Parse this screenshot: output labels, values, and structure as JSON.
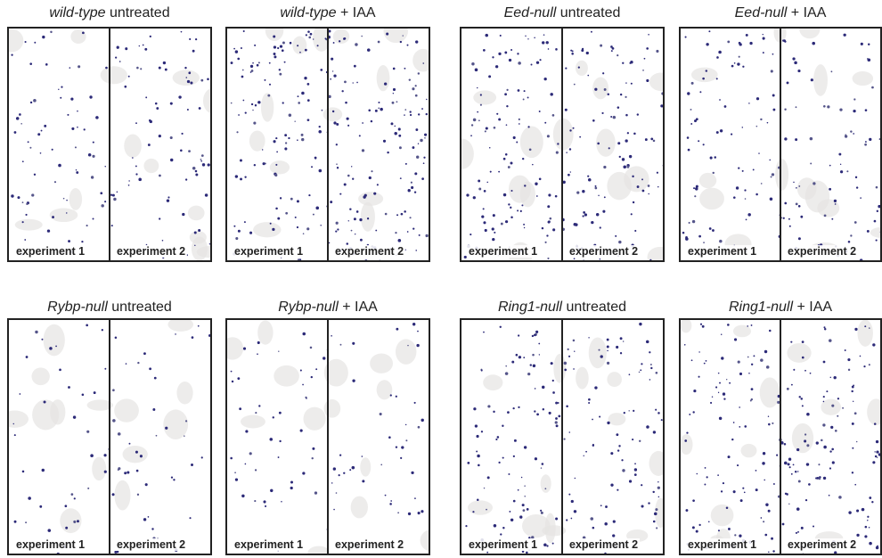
{
  "panels": [
    {
      "genotype": "wild-type",
      "treatment": "untreated",
      "experiments": [
        "experiment 1",
        "experiment 2"
      ]
    },
    {
      "genotype": "wild-type",
      "treatment": "+ IAA",
      "experiments": [
        "experiment 1",
        "experiment 2"
      ]
    },
    {
      "genotype": "Eed-null",
      "treatment": "untreated",
      "experiments": [
        "experiment 1",
        "experiment 2"
      ]
    },
    {
      "genotype": "Eed-null",
      "treatment": "+ IAA",
      "experiments": [
        "experiment 1",
        "experiment 2"
      ]
    },
    {
      "genotype": "Rybp-null",
      "treatment": "untreated",
      "experiments": [
        "experiment 1",
        "experiment 2"
      ]
    },
    {
      "genotype": "Rybp-null",
      "treatment": "+ IAA",
      "experiments": [
        "experiment 1",
        "experiment 2"
      ]
    },
    {
      "genotype": "Ring1-null",
      "treatment": "untreated",
      "experiments": [
        "experiment 1",
        "experiment 2"
      ]
    },
    {
      "genotype": "Ring1-null",
      "treatment": "+ IAA",
      "experiments": [
        "experiment 1",
        "experiment 2"
      ]
    }
  ]
}
